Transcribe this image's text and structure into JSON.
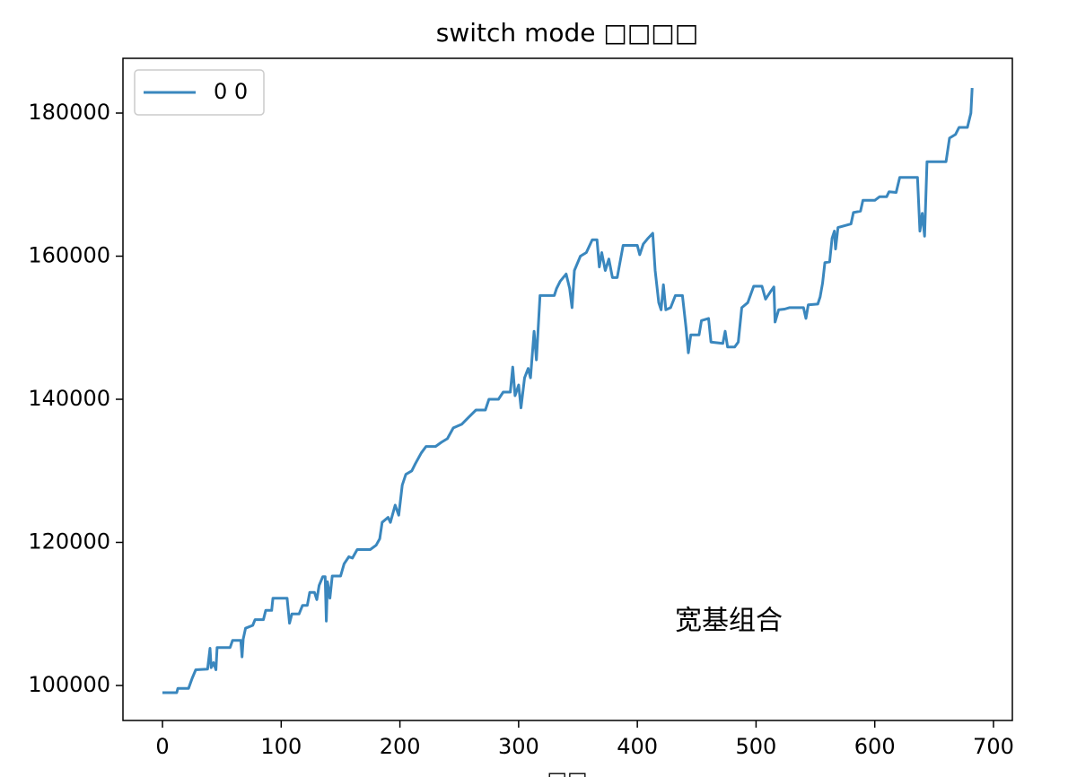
{
  "chart_data": {
    "type": "line",
    "title": "switch mode □□□□",
    "x_label": "□□",
    "annotation": {
      "text": "宽基组合",
      "color": "#e8452c"
    },
    "xlim": [
      -33.3,
      715.9
    ],
    "ylim": [
      95110,
      187650
    ],
    "xticks": [
      0,
      100,
      200,
      300,
      400,
      500,
      600,
      700
    ],
    "yticks": [
      100000,
      120000,
      140000,
      160000,
      180000
    ],
    "legend": "upper left",
    "series": [
      {
        "name": "0 0",
        "color": "#3a87be",
        "x": [
          0,
          12,
          13,
          22,
          25,
          28,
          38,
          40,
          41,
          43,
          45,
          46,
          57,
          59,
          66,
          67,
          68,
          70,
          76,
          78,
          85,
          87,
          92,
          93,
          105,
          107,
          109,
          115,
          118,
          122,
          124,
          128,
          130,
          132,
          135,
          137,
          138,
          139,
          141,
          143,
          150,
          153,
          157,
          160,
          164,
          175,
          180,
          183,
          185,
          190,
          192,
          196,
          199,
          202,
          205,
          210,
          213,
          218,
          222,
          230,
          235,
          240,
          245,
          252,
          258,
          264,
          272,
          275,
          283,
          287,
          293,
          295,
          297,
          300,
          302,
          305,
          308,
          310,
          313,
          315,
          318,
          330,
          332,
          335,
          340,
          343,
          345,
          347,
          352,
          357,
          362,
          366,
          368,
          370,
          373,
          376,
          379,
          383,
          388,
          400,
          402,
          405,
          409,
          413,
          415,
          418,
          420,
          422,
          424,
          428,
          432,
          438,
          441,
          443,
          445,
          452,
          454,
          460,
          462,
          472,
          474,
          476,
          482,
          485,
          488,
          493,
          498,
          505,
          508,
          512,
          515,
          516,
          519,
          524,
          528,
          540,
          542,
          544,
          552,
          554,
          556,
          558,
          562,
          564,
          566,
          567,
          569,
          580,
          582,
          588,
          590,
          600,
          604,
          610,
          612,
          618,
          621,
          636,
          638,
          640,
          642,
          644,
          660,
          663,
          668,
          671,
          678,
          681,
          682
        ],
        "values": [
          99000,
          99000,
          99600,
          99600,
          101000,
          102200,
          102300,
          105200,
          102500,
          103200,
          102200,
          105300,
          105300,
          106300,
          106300,
          104000,
          106500,
          108000,
          108400,
          109200,
          109200,
          110500,
          110500,
          112200,
          112200,
          108700,
          110000,
          110000,
          111200,
          111200,
          113000,
          113000,
          112000,
          114000,
          115200,
          115200,
          109000,
          114500,
          112200,
          115300,
          115300,
          117000,
          118000,
          117800,
          119000,
          119000,
          119600,
          120500,
          122800,
          123500,
          122800,
          125200,
          123800,
          128000,
          129500,
          130000,
          131000,
          132500,
          133400,
          133400,
          134000,
          134500,
          136000,
          136500,
          137500,
          138500,
          138500,
          140000,
          140000,
          141000,
          141000,
          144500,
          140500,
          142000,
          138800,
          143000,
          144300,
          143000,
          149500,
          145500,
          154500,
          154500,
          155500,
          156500,
          157500,
          155500,
          152800,
          158000,
          160000,
          160500,
          162300,
          162300,
          158500,
          160500,
          158000,
          159600,
          157000,
          157000,
          161500,
          161500,
          160200,
          161700,
          162500,
          163200,
          158000,
          153500,
          152500,
          156000,
          152500,
          152800,
          154500,
          154500,
          150000,
          146500,
          149000,
          149000,
          151000,
          151300,
          148000,
          147800,
          149500,
          147300,
          147300,
          148000,
          152800,
          153500,
          155800,
          155800,
          154000,
          155000,
          155700,
          150800,
          152500,
          152600,
          152800,
          152800,
          151300,
          153200,
          153300,
          154300,
          156200,
          159100,
          159200,
          162500,
          163500,
          161000,
          164000,
          164500,
          166100,
          166300,
          167800,
          167800,
          168300,
          168300,
          169000,
          168900,
          171000,
          171000,
          163500,
          166000,
          162800,
          173200,
          173200,
          176500,
          177000,
          178000,
          178000,
          180000,
          183500
        ]
      }
    ]
  }
}
